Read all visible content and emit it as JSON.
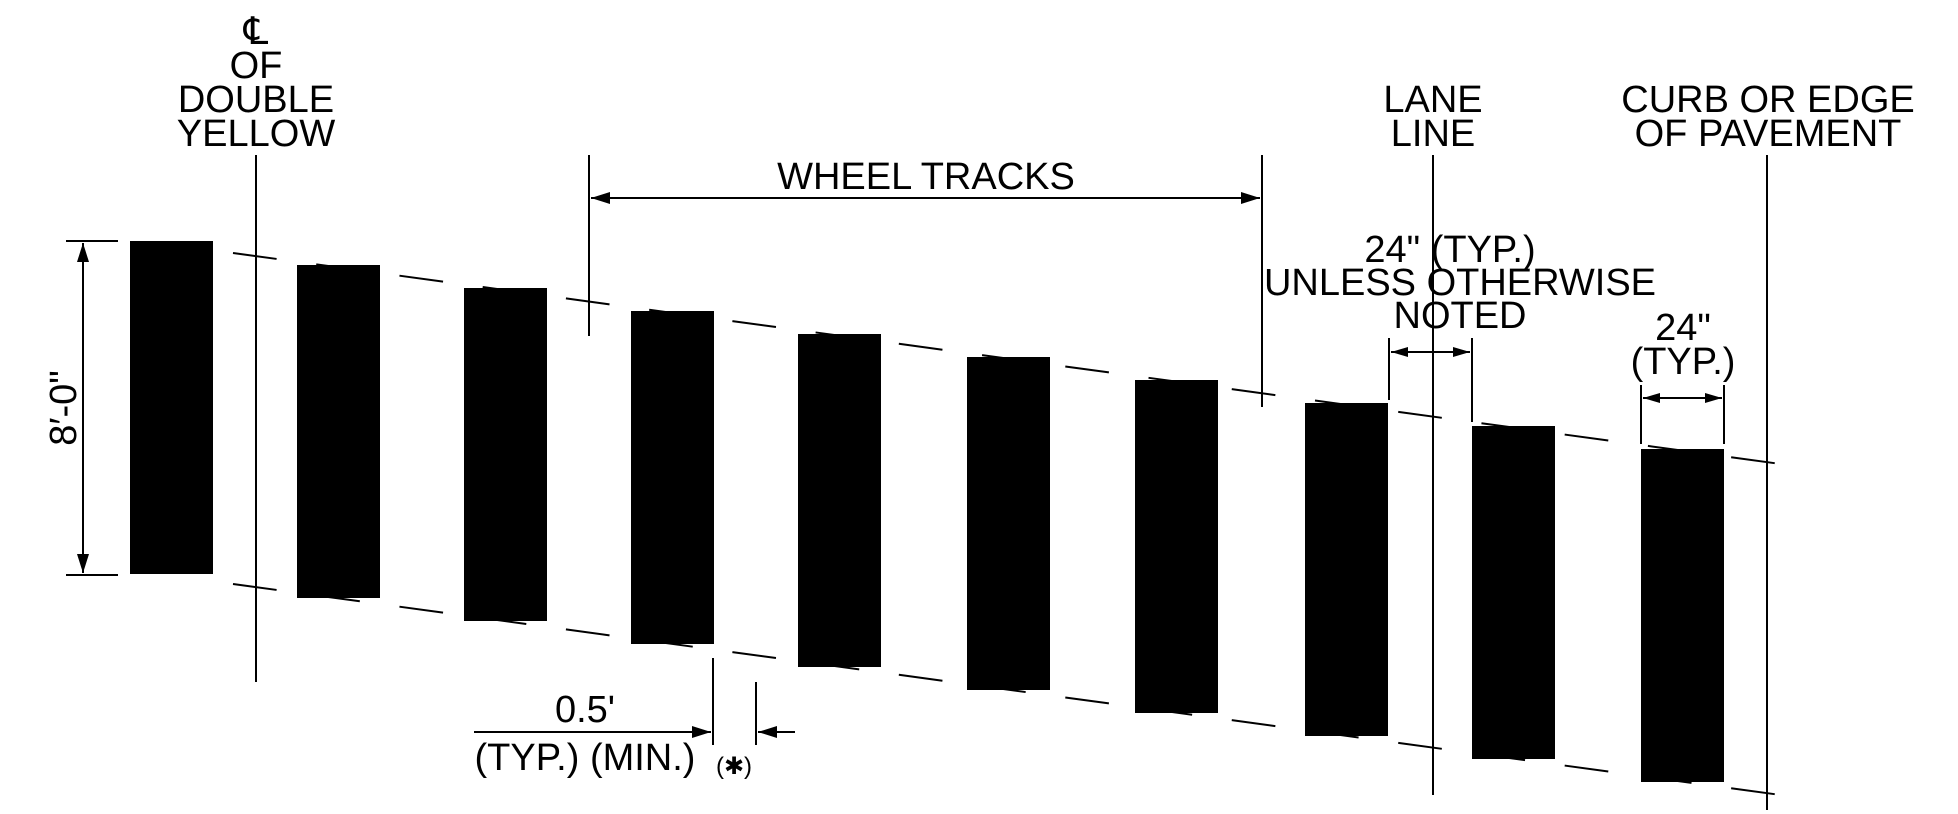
{
  "labels": {
    "centerline_symbol": "℄",
    "centerline_line2": "OF",
    "centerline_line3": "DOUBLE",
    "centerline_line4": "YELLOW",
    "wheel_tracks": "WHEEL TRACKS",
    "lane_line_1": "LANE",
    "lane_line_2": "LINE",
    "curb_1": "CURB OR EDGE",
    "curb_2": "OF PAVEMENT",
    "spacing_1": "24\" (TYP.)",
    "spacing_2": "UNLESS OTHERWISE",
    "spacing_3": "NOTED",
    "width_1": "24\"",
    "width_2": "(TYP.)",
    "length": "8′-0\"",
    "offset_1": "0.5'",
    "offset_2": "(TYP.) (MIN.)",
    "note_marker": "(✱)"
  },
  "colors": {
    "ink": "#000000",
    "background": "#ffffff"
  }
}
